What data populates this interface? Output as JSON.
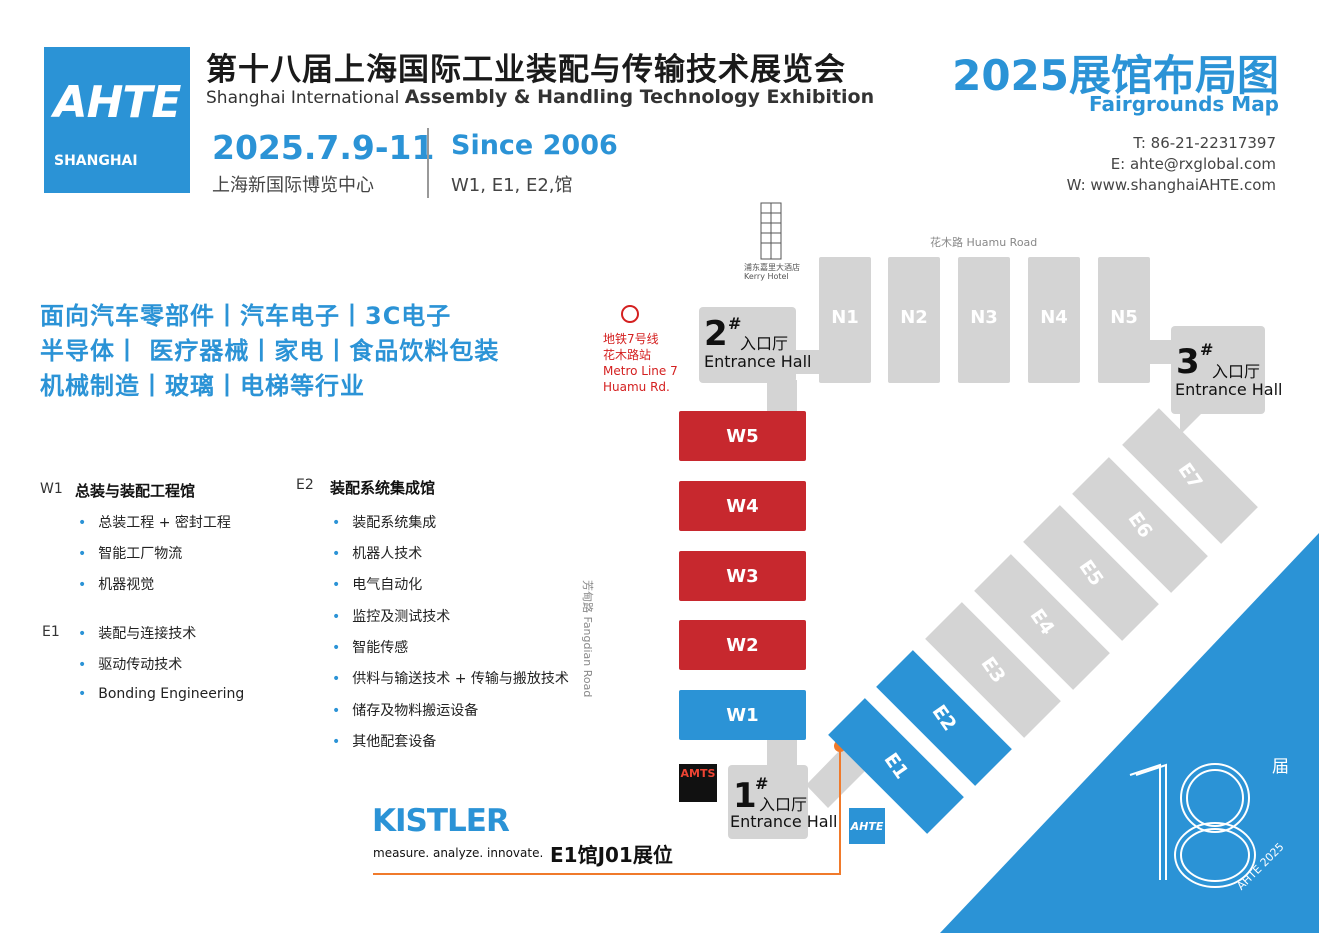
{
  "logo": {
    "mark": "AHTE",
    "city": "SHANGHAI"
  },
  "header": {
    "title_cn": "第十八届上海国际工业装配与传输技术展览会",
    "title_en_prefix": "Shanghai International",
    "title_en_main": "Assembly & Handling Technology Exhibition",
    "date": "2025.7.9-11",
    "venue": "上海新国际博览中心",
    "since": "Since 2006",
    "halls": "W1, E1, E2,馆"
  },
  "map_title": {
    "cn": "2025展馆布局图",
    "en": "Fairgrounds Map"
  },
  "contact": {
    "tel": "T: 86-21-22317397",
    "email": "E: ahte@rxglobal.com",
    "web": "W: www.shanghaiAHTE.com"
  },
  "industries": [
    "面向汽车零部件丨汽车电子丨3C电子",
    "半导体丨 医疗器械丨家电丨食品饮料包装",
    "机械制造丨玻璃丨电梯等行业"
  ],
  "categories": {
    "w1": {
      "code": "W1",
      "title": "总装与装配工程馆",
      "items": [
        "总装工程 + 密封工程",
        "智能工厂物流",
        "机器视觉"
      ]
    },
    "e1": {
      "code": "E1",
      "items": [
        "装配与连接技术",
        "驱动传动技术",
        "Bonding Engineering"
      ]
    },
    "e2": {
      "code": "E2",
      "title": "装配系统集成馆",
      "items": [
        "装配系统集成",
        "机器人技术",
        "电气自动化",
        "监控及测试技术",
        "智能传感",
        "供料与输送技术 + 传输与搬放技术",
        "储存及物料搬运设备",
        "其他配套设备"
      ]
    }
  },
  "map": {
    "kerry": {
      "cn": "浦东嘉里大酒店",
      "en": "Kerry Hotel"
    },
    "road_north": "花木路 Huamu Road",
    "road_west": "芳甸路 Fangdian Road",
    "metro": [
      "地铁7号线",
      "花木路站",
      "Metro Line 7",
      "Huamu Rd."
    ],
    "north_halls": [
      "N1",
      "N2",
      "N3",
      "N4",
      "N5"
    ],
    "west_halls": [
      "W5",
      "W4",
      "W3",
      "W2",
      "W1"
    ],
    "east_halls": [
      "E1",
      "E2",
      "E3",
      "E4",
      "E5",
      "E6",
      "E7"
    ],
    "entrance2": {
      "num": "2",
      "sup": "#",
      "cn": "入口厅",
      "en": "Entrance Hall"
    },
    "entrance3": {
      "num": "3",
      "sup": "#",
      "cn": "入口厅",
      "en": "Entrance Hall"
    },
    "entrance1": {
      "num": "1",
      "sup": "#",
      "cn": "入口厅",
      "en": "Entrance Hall"
    },
    "amts": "AMTS",
    "ahte_small": "AHTE"
  },
  "exhibitor": {
    "brand": "KISTLER",
    "tagline": "measure. analyze. innovate.",
    "booth": "E1馆J01展位"
  },
  "edition": {
    "number": "18",
    "suffix": "届",
    "label": "AHTE 2025"
  },
  "colors": {
    "brand_blue": "#2b93d6",
    "west_red": "#c7282e",
    "hall_grey": "#d4d4d4",
    "path_orange": "#f07a2b"
  }
}
